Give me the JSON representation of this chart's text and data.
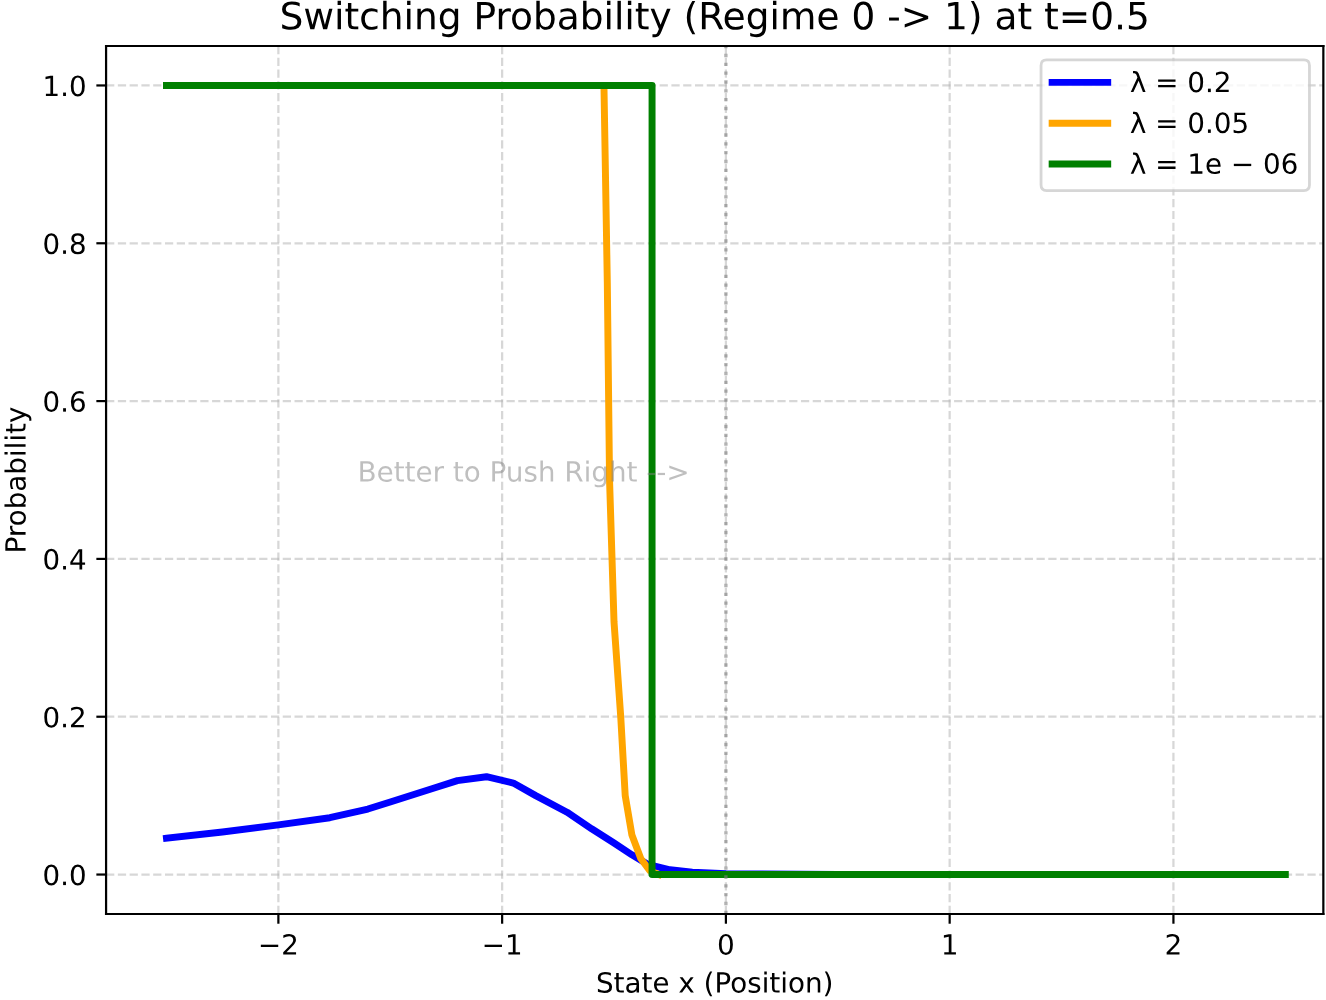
{
  "chart_data": {
    "type": "line",
    "title": "Switching Probability (Regime 0 -> 1) at t=0.5",
    "xlabel": "State x (Position)",
    "ylabel": "Probability",
    "series": [
      {
        "name": "λ = 0.2",
        "color": "#0000ff",
        "x": [
          -2.5,
          -2.25,
          -2.0,
          -1.77,
          -1.6,
          -1.5,
          -1.3,
          -1.2,
          -1.07,
          -0.95,
          -0.85,
          -0.71,
          -0.6,
          -0.5,
          -0.42,
          -0.35,
          -0.25,
          -0.15,
          0,
          0.5,
          1.0
        ],
        "values": [
          0.046,
          0.054,
          0.063,
          0.072,
          0.083,
          0.092,
          0.11,
          0.119,
          0.124,
          0.116,
          0.1,
          0.079,
          0.058,
          0.04,
          0.025,
          0.013,
          0.006,
          0.003,
          0.001,
          0.0,
          0.0
        ]
      },
      {
        "name": "λ = 0.05",
        "color": "#ffa500",
        "x": [
          -0.545,
          -0.53,
          -0.52,
          -0.5,
          -0.47,
          -0.45,
          -0.42,
          -0.38,
          -0.34,
          -0.3
        ],
        "values": [
          1.0,
          0.75,
          0.5,
          0.32,
          0.2,
          0.1,
          0.05,
          0.02,
          0.005,
          0.0
        ]
      },
      {
        "name": "λ = 1e − 06",
        "color": "#008000",
        "x": [
          -2.5,
          -0.33,
          -0.33,
          2.5
        ],
        "values": [
          1.0,
          1.0,
          0.0,
          0.0
        ]
      }
    ],
    "xlim": [
      -2.77,
      2.67
    ],
    "ylim": [
      -0.05,
      1.05
    ],
    "xticks": [
      {
        "value": -2,
        "label": "−2"
      },
      {
        "value": -1,
        "label": "−1"
      },
      0,
      1,
      2
    ],
    "yticks": [
      {
        "value": 0,
        "label": "0.0"
      },
      {
        "value": 0.2,
        "label": "0.2"
      },
      {
        "value": 0.4,
        "label": "0.4"
      },
      {
        "value": 0.6,
        "label": "0.6"
      },
      {
        "value": 0.8,
        "label": "0.8"
      },
      {
        "value": 1,
        "label": "1.0"
      }
    ],
    "ref_lines": [
      {
        "axis": "x",
        "value": 0,
        "color": "#808080",
        "line_style": "dotted"
      }
    ],
    "annotations": [
      "Better to Push Right -->"
    ],
    "grid": true,
    "legend": "top right",
    "line_style": "solid",
    "marker": "none"
  }
}
